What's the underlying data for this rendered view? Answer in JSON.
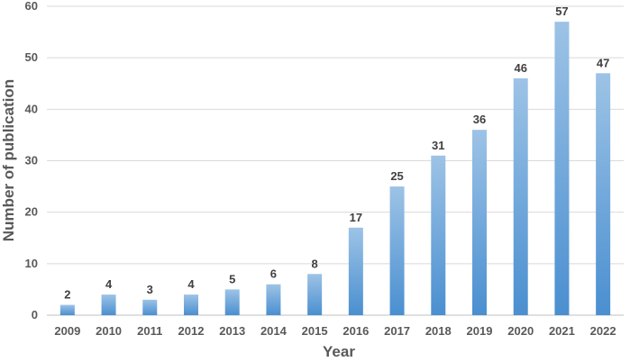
{
  "chart_data": {
    "type": "bar",
    "title": "",
    "xlabel": "Year",
    "ylabel": "Number of publication",
    "categories": [
      "2009",
      "2010",
      "2011",
      "2012",
      "2013",
      "2014",
      "2015",
      "2016",
      "2017",
      "2018",
      "2019",
      "2020",
      "2021",
      "2022"
    ],
    "values": [
      2,
      4,
      3,
      4,
      5,
      6,
      8,
      17,
      25,
      31,
      36,
      46,
      57,
      47
    ],
    "ylim": [
      0,
      60
    ],
    "yticks": [
      0,
      10,
      20,
      30,
      40,
      50,
      60
    ],
    "grid": true,
    "legend": "none",
    "bar_color_light": "#9dc3e6",
    "bar_color_dark": "#4a8fd0",
    "grid_color": "#d9d9d9"
  }
}
